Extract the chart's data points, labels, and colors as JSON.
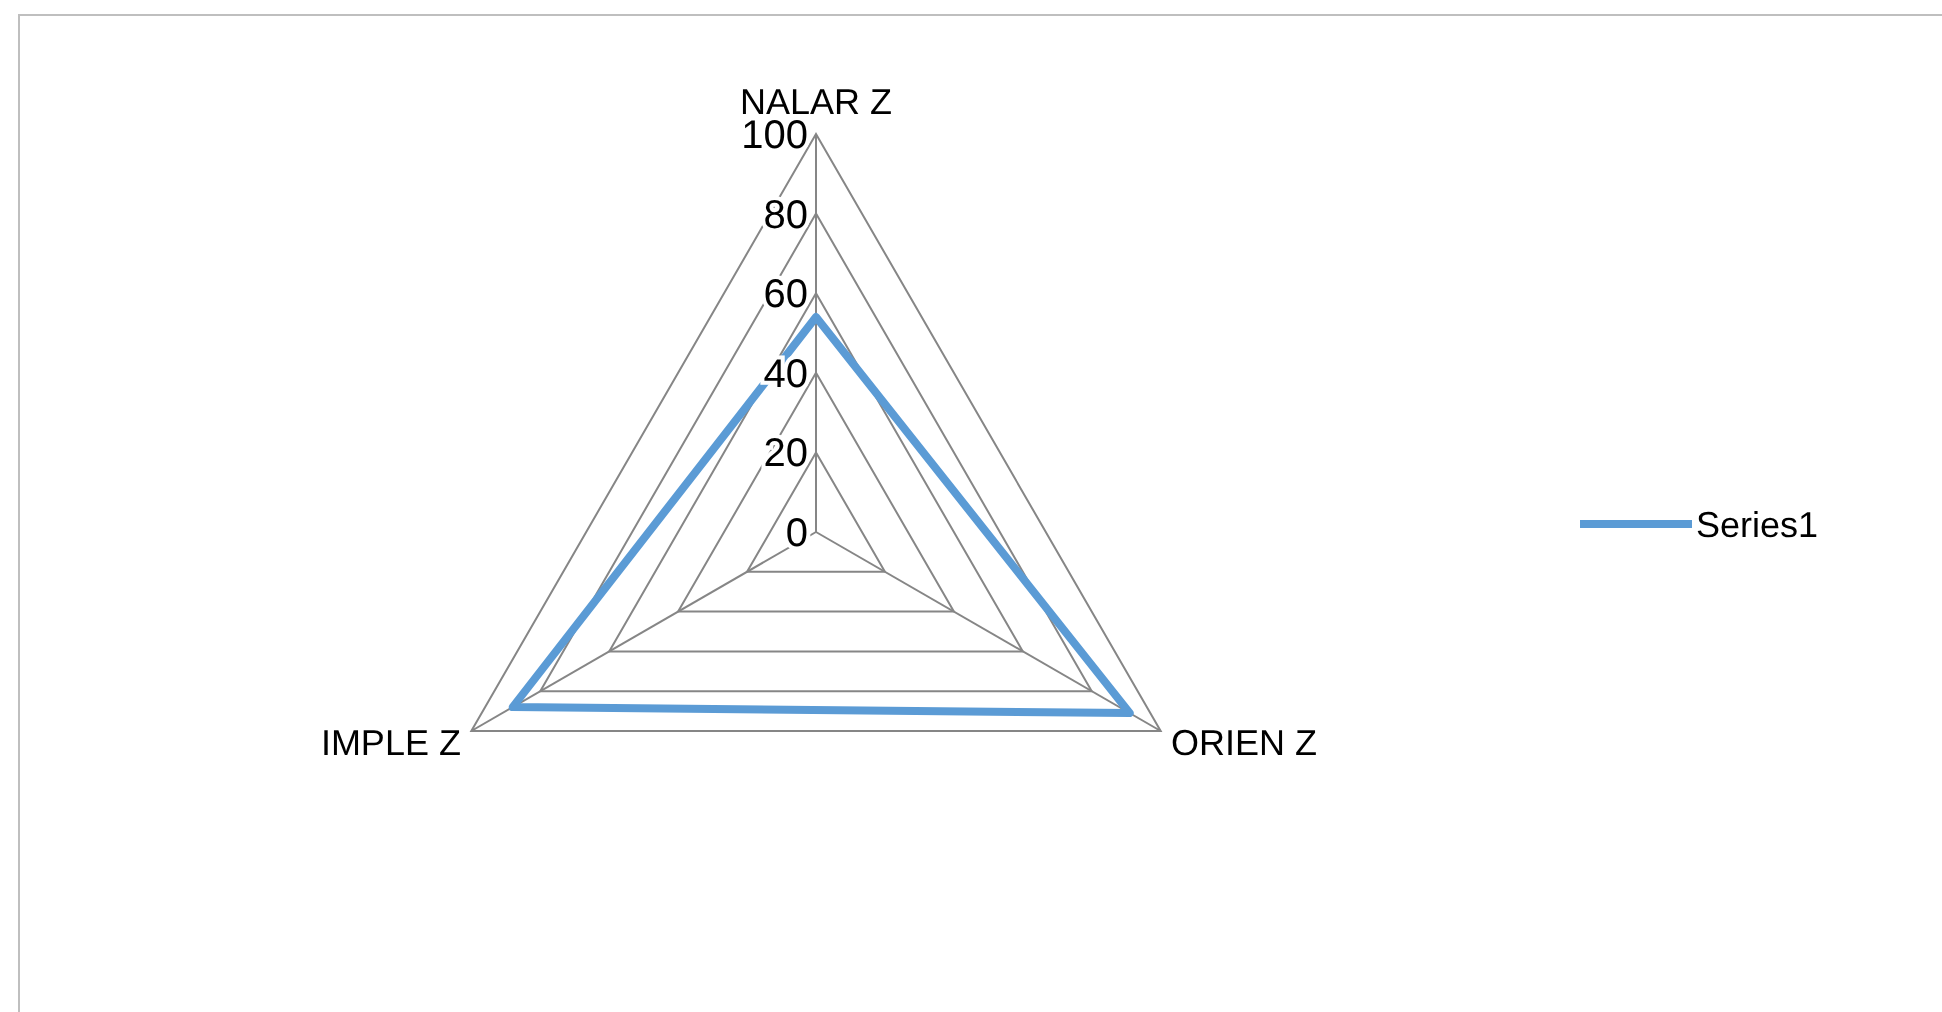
{
  "chart_data": {
    "type": "radar",
    "categories": [
      "NALAR Z",
      "ORIEN Z",
      "IMPLE Z"
    ],
    "series": [
      {
        "name": "Series1",
        "color": "#5b9bd5",
        "values": [
          54,
          91,
          88
        ]
      }
    ],
    "ylim": [
      0,
      100
    ],
    "yticks": [
      0,
      20,
      40,
      60,
      80,
      100
    ],
    "grid": true,
    "legend": "right",
    "marker": "none"
  }
}
